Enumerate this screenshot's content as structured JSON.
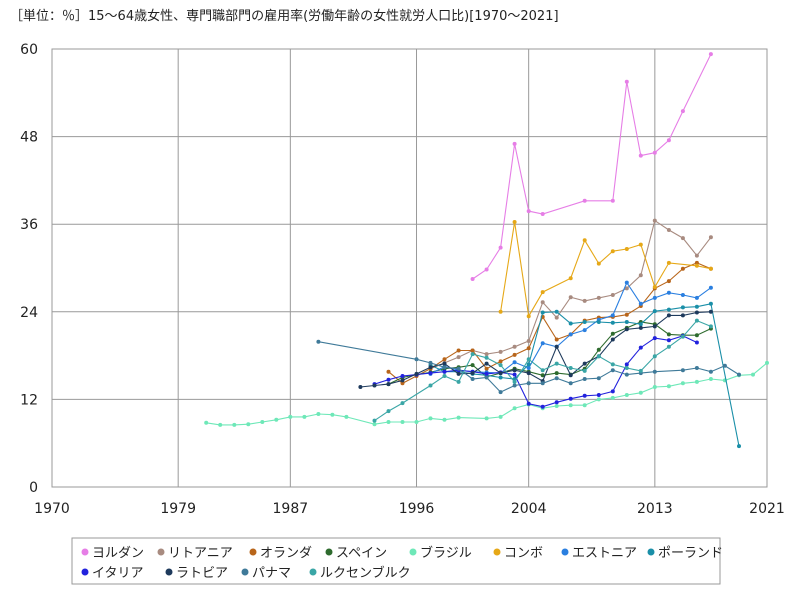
{
  "chart_data": {
    "type": "line",
    "title": "［単位：％］15～64歳女性、専門職部門の雇用率(労働年齢の女性就労人口比)[1970～2021]",
    "xlabel": "",
    "ylabel": "",
    "xlim": [
      1970,
      2021
    ],
    "ylim": [
      0,
      60
    ],
    "xticks": [
      1970,
      1979,
      1987,
      1996,
      2004,
      2013,
      2021
    ],
    "yticks": [
      0,
      12,
      24,
      36,
      48,
      60
    ],
    "grid": true,
    "legend_position": "bottom",
    "series": [
      {
        "name": "ヨルダン",
        "color": "#e67ee6",
        "points": [
          [
            2000,
            28.5
          ],
          [
            2001,
            29.8
          ],
          [
            2002,
            32.8
          ],
          [
            2003,
            47.0
          ],
          [
            2004,
            37.8
          ],
          [
            2005,
            37.4
          ],
          [
            2008,
            39.2
          ],
          [
            2010,
            39.2
          ],
          [
            2011,
            55.5
          ],
          [
            2012,
            45.4
          ],
          [
            2013,
            45.8
          ],
          [
            2014,
            47.5
          ],
          [
            2015,
            51.5
          ],
          [
            2017,
            59.3
          ]
        ]
      },
      {
        "name": "リトアニア",
        "color": "#a88b80",
        "points": [
          [
            1997,
            16.2
          ],
          [
            1998,
            17.0
          ],
          [
            1999,
            17.8
          ],
          [
            2000,
            18.7
          ],
          [
            2001,
            18.2
          ],
          [
            2002,
            18.5
          ],
          [
            2003,
            19.2
          ],
          [
            2004,
            20.0
          ],
          [
            2005,
            25.3
          ],
          [
            2006,
            23.2
          ],
          [
            2007,
            26.0
          ],
          [
            2008,
            25.5
          ],
          [
            2009,
            25.9
          ],
          [
            2010,
            26.3
          ],
          [
            2011,
            27.2
          ],
          [
            2012,
            29.0
          ],
          [
            2013,
            36.5
          ],
          [
            2014,
            35.2
          ],
          [
            2015,
            34.1
          ],
          [
            2016,
            31.7
          ],
          [
            2017,
            34.2
          ]
        ]
      },
      {
        "name": "オランダ",
        "color": "#b8651a",
        "points": [
          [
            1994,
            15.8
          ],
          [
            1995,
            14.2
          ],
          [
            1996,
            15.2
          ],
          [
            1997,
            16.2
          ],
          [
            1998,
            17.5
          ],
          [
            1999,
            18.7
          ],
          [
            2000,
            18.7
          ],
          [
            2001,
            16.2
          ],
          [
            2002,
            17.2
          ],
          [
            2003,
            18.1
          ],
          [
            2004,
            19.0
          ],
          [
            2005,
            23.3
          ],
          [
            2006,
            20.2
          ],
          [
            2007,
            20.9
          ],
          [
            2008,
            22.8
          ],
          [
            2009,
            23.2
          ],
          [
            2010,
            23.3
          ],
          [
            2011,
            23.6
          ],
          [
            2012,
            24.8
          ],
          [
            2013,
            27.2
          ],
          [
            2014,
            28.2
          ],
          [
            2015,
            29.9
          ],
          [
            2016,
            30.7
          ],
          [
            2017,
            29.9
          ]
        ]
      },
      {
        "name": "スペイン",
        "color": "#2e6b2e",
        "points": [
          [
            1994,
            14.1
          ],
          [
            1995,
            15.0
          ],
          [
            1996,
            15.4
          ],
          [
            1997,
            15.7
          ],
          [
            1998,
            16.2
          ],
          [
            1999,
            16.4
          ],
          [
            2000,
            16.7
          ],
          [
            2001,
            15.1
          ],
          [
            2002,
            15.6
          ],
          [
            2003,
            16.2
          ],
          [
            2004,
            15.8
          ],
          [
            2005,
            15.3
          ],
          [
            2006,
            15.6
          ],
          [
            2007,
            15.4
          ],
          [
            2008,
            16.2
          ],
          [
            2009,
            18.8
          ],
          [
            2010,
            21.0
          ],
          [
            2011,
            21.8
          ],
          [
            2012,
            22.6
          ],
          [
            2013,
            22.3
          ],
          [
            2014,
            20.9
          ],
          [
            2015,
            20.8
          ],
          [
            2016,
            20.8
          ],
          [
            2017,
            21.7
          ]
        ]
      },
      {
        "name": "ブラジル",
        "color": "#6ee8b8",
        "points": [
          [
            1981,
            8.8
          ],
          [
            1982,
            8.5
          ],
          [
            1983,
            8.5
          ],
          [
            1984,
            8.6
          ],
          [
            1985,
            8.9
          ],
          [
            1986,
            9.2
          ],
          [
            1987,
            9.6
          ],
          [
            1988,
            9.6
          ],
          [
            1989,
            10.0
          ],
          [
            1990,
            9.9
          ],
          [
            1991,
            9.6
          ],
          [
            1993,
            8.6
          ],
          [
            1994,
            8.9
          ],
          [
            1995,
            8.9
          ],
          [
            1996,
            8.9
          ],
          [
            1997,
            9.4
          ],
          [
            1998,
            9.2
          ],
          [
            1999,
            9.5
          ],
          [
            2001,
            9.4
          ],
          [
            2002,
            9.6
          ],
          [
            2003,
            10.8
          ],
          [
            2004,
            11.3
          ],
          [
            2005,
            10.8
          ],
          [
            2006,
            11.1
          ],
          [
            2007,
            11.2
          ],
          [
            2008,
            11.2
          ],
          [
            2009,
            12.0
          ],
          [
            2010,
            12.2
          ],
          [
            2011,
            12.6
          ],
          [
            2012,
            12.9
          ],
          [
            2013,
            13.7
          ],
          [
            2014,
            13.8
          ],
          [
            2015,
            14.2
          ],
          [
            2016,
            14.4
          ],
          [
            2017,
            14.8
          ],
          [
            2018,
            14.6
          ],
          [
            2019,
            15.3
          ],
          [
            2020,
            15.4
          ],
          [
            2021,
            17.0
          ]
        ]
      },
      {
        "name": "コンボ",
        "color": "#e6a817",
        "points": [
          [
            2002,
            24.0
          ],
          [
            2003,
            36.3
          ],
          [
            2004,
            23.4
          ],
          [
            2005,
            26.7
          ],
          [
            2007,
            28.6
          ],
          [
            2008,
            33.8
          ],
          [
            2009,
            30.6
          ],
          [
            2010,
            32.3
          ],
          [
            2011,
            32.6
          ],
          [
            2012,
            33.2
          ],
          [
            2013,
            27.4
          ],
          [
            2014,
            30.7
          ],
          [
            2016,
            30.3
          ],
          [
            2017,
            29.9
          ]
        ]
      },
      {
        "name": "エストニア",
        "color": "#2a7fe0",
        "points": [
          [
            1997,
            15.5
          ],
          [
            1998,
            16.5
          ],
          [
            1999,
            16.0
          ],
          [
            2000,
            15.8
          ],
          [
            2001,
            15.7
          ],
          [
            2002,
            15.6
          ],
          [
            2003,
            17.1
          ],
          [
            2004,
            16.3
          ],
          [
            2005,
            19.7
          ],
          [
            2006,
            19.2
          ],
          [
            2007,
            20.9
          ],
          [
            2008,
            21.5
          ],
          [
            2009,
            22.9
          ],
          [
            2010,
            23.5
          ],
          [
            2011,
            28.0
          ],
          [
            2012,
            25.1
          ],
          [
            2013,
            25.9
          ],
          [
            2014,
            26.6
          ],
          [
            2015,
            26.3
          ],
          [
            2016,
            25.9
          ],
          [
            2017,
            27.3
          ]
        ]
      },
      {
        "name": "ポーランド",
        "color": "#1a8fa8",
        "points": [
          [
            1997,
            16.7
          ],
          [
            1998,
            15.8
          ],
          [
            1999,
            15.8
          ],
          [
            2000,
            15.5
          ],
          [
            2001,
            15.3
          ],
          [
            2002,
            15.0
          ],
          [
            2003,
            14.8
          ],
          [
            2004,
            16.8
          ],
          [
            2005,
            23.9
          ],
          [
            2006,
            24.0
          ],
          [
            2007,
            22.4
          ],
          [
            2008,
            22.6
          ],
          [
            2009,
            22.6
          ],
          [
            2010,
            22.5
          ],
          [
            2011,
            22.6
          ],
          [
            2012,
            22.3
          ],
          [
            2013,
            24.1
          ],
          [
            2014,
            24.3
          ],
          [
            2015,
            24.6
          ],
          [
            2016,
            24.7
          ],
          [
            2017,
            25.1
          ],
          [
            2019,
            5.6
          ]
        ]
      },
      {
        "name": "イタリア",
        "color": "#2222dd",
        "points": [
          [
            1993,
            14.1
          ],
          [
            1994,
            14.7
          ],
          [
            1995,
            15.2
          ],
          [
            1996,
            15.4
          ],
          [
            1997,
            15.6
          ],
          [
            1998,
            15.8
          ],
          [
            1999,
            16.0
          ],
          [
            2000,
            15.8
          ],
          [
            2001,
            15.5
          ],
          [
            2002,
            15.7
          ],
          [
            2003,
            15.4
          ],
          [
            2004,
            11.4
          ],
          [
            2005,
            11.0
          ],
          [
            2006,
            11.6
          ],
          [
            2007,
            12.1
          ],
          [
            2008,
            12.5
          ],
          [
            2009,
            12.6
          ],
          [
            2010,
            13.1
          ],
          [
            2011,
            16.8
          ],
          [
            2012,
            19.1
          ],
          [
            2013,
            20.4
          ],
          [
            2014,
            20.1
          ],
          [
            2015,
            20.7
          ],
          [
            2016,
            19.8
          ]
        ]
      },
      {
        "name": "ラトビア",
        "color": "#1e3a5c",
        "points": [
          [
            1992,
            13.7
          ],
          [
            1993,
            13.9
          ],
          [
            1994,
            14.1
          ],
          [
            1995,
            14.6
          ],
          [
            1996,
            15.5
          ],
          [
            1997,
            16.4
          ],
          [
            1998,
            16.9
          ],
          [
            1999,
            15.5
          ],
          [
            2000,
            15.6
          ],
          [
            2001,
            16.9
          ],
          [
            2002,
            15.6
          ],
          [
            2003,
            16.0
          ],
          [
            2004,
            15.6
          ],
          [
            2005,
            14.5
          ],
          [
            2006,
            19.2
          ],
          [
            2007,
            15.3
          ],
          [
            2008,
            16.9
          ],
          [
            2009,
            17.9
          ],
          [
            2010,
            20.2
          ],
          [
            2011,
            21.6
          ],
          [
            2012,
            21.8
          ],
          [
            2013,
            22.0
          ],
          [
            2014,
            23.5
          ],
          [
            2015,
            23.5
          ],
          [
            2016,
            23.9
          ],
          [
            2017,
            24.0
          ]
        ]
      },
      {
        "name": "パナマ",
        "color": "#3f7a99",
        "points": [
          [
            1989,
            19.9
          ],
          [
            1996,
            17.5
          ],
          [
            1997,
            17.0
          ],
          [
            1998,
            16.4
          ],
          [
            1999,
            16.2
          ],
          [
            2000,
            14.8
          ],
          [
            2001,
            15.0
          ],
          [
            2002,
            13.0
          ],
          [
            2003,
            13.9
          ],
          [
            2004,
            14.2
          ],
          [
            2005,
            14.2
          ],
          [
            2006,
            14.9
          ],
          [
            2007,
            14.2
          ],
          [
            2008,
            14.8
          ],
          [
            2009,
            14.9
          ],
          [
            2010,
            16.0
          ],
          [
            2011,
            15.4
          ],
          [
            2012,
            15.6
          ],
          [
            2013,
            15.8
          ],
          [
            2015,
            16.0
          ],
          [
            2016,
            16.3
          ],
          [
            2017,
            15.8
          ],
          [
            2018,
            16.6
          ],
          [
            2019,
            15.4
          ]
        ]
      },
      {
        "name": "ルクセンブルク",
        "color": "#3aa6a6",
        "points": [
          [
            1993,
            9.1
          ],
          [
            1994,
            10.4
          ],
          [
            1995,
            11.5
          ],
          [
            1997,
            13.9
          ],
          [
            1998,
            15.2
          ],
          [
            1999,
            14.4
          ],
          [
            2000,
            18.2
          ],
          [
            2001,
            17.7
          ],
          [
            2002,
            16.7
          ],
          [
            2003,
            14.4
          ],
          [
            2004,
            17.5
          ],
          [
            2005,
            16.0
          ],
          [
            2006,
            16.9
          ],
          [
            2007,
            16.3
          ],
          [
            2008,
            15.9
          ],
          [
            2009,
            17.9
          ],
          [
            2010,
            16.8
          ],
          [
            2011,
            16.3
          ],
          [
            2012,
            15.9
          ],
          [
            2013,
            17.9
          ],
          [
            2014,
            19.2
          ],
          [
            2015,
            20.6
          ],
          [
            2016,
            22.8
          ],
          [
            2017,
            22.0
          ]
        ]
      }
    ]
  }
}
